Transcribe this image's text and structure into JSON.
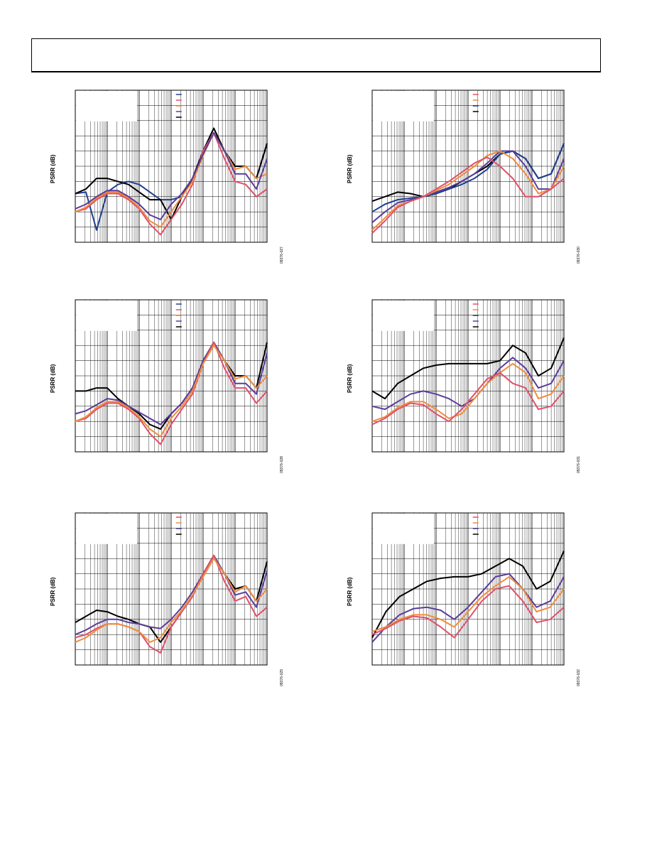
{
  "page": {
    "header_title": ""
  },
  "chart_data": [
    {
      "type": "line",
      "ylabel": "PSRR (dB)",
      "figure_id": "09376-027",
      "x_scale": "log",
      "grid": true,
      "legend": {
        "placement": "top-right",
        "colors": [
          "#1f3f8f",
          "#e0506a",
          "#f08c3c",
          "#5a3d9a",
          "#000000"
        ]
      },
      "series": [
        {
          "color": "#1f3f8f",
          "y": [
            0.32,
            0.33,
            0.08,
            0.33,
            0.38,
            0.4,
            0.38,
            0.33,
            0.28,
            0.28,
            0.3,
            0.42,
            0.6,
            0.75,
            0.6,
            0.5,
            0.5,
            0.42,
            0.65
          ]
        },
        {
          "color": "#000000",
          "y": [
            0.32,
            0.35,
            0.42,
            0.42,
            0.4,
            0.38,
            0.33,
            0.28,
            0.28,
            0.15,
            0.3,
            0.42,
            0.6,
            0.75,
            0.6,
            0.5,
            0.5,
            0.42,
            0.65
          ]
        },
        {
          "color": "#e0506a",
          "y": [
            0.2,
            0.22,
            0.28,
            0.32,
            0.32,
            0.28,
            0.22,
            0.12,
            0.05,
            0.15,
            0.25,
            0.38,
            0.6,
            0.72,
            0.55,
            0.4,
            0.38,
            0.3,
            0.35
          ]
        },
        {
          "color": "#f08c3c",
          "y": [
            0.2,
            0.23,
            0.29,
            0.33,
            0.33,
            0.29,
            0.23,
            0.14,
            0.1,
            0.2,
            0.3,
            0.4,
            0.57,
            0.72,
            0.6,
            0.48,
            0.5,
            0.42,
            0.45
          ]
        },
        {
          "color": "#5a3d9a",
          "y": [
            0.22,
            0.25,
            0.3,
            0.34,
            0.34,
            0.3,
            0.25,
            0.18,
            0.15,
            0.25,
            0.32,
            0.42,
            0.58,
            0.72,
            0.6,
            0.45,
            0.45,
            0.35,
            0.55
          ]
        }
      ]
    },
    {
      "type": "line",
      "ylabel": "PSRR (dB)",
      "figure_id": "09376-030",
      "x_scale": "log",
      "grid": true,
      "legend": {
        "placement": "top-right",
        "colors": [
          "#e0506a",
          "#f08c3c",
          "#1f3f8f",
          "#000000"
        ]
      },
      "series": [
        {
          "color": "#000000",
          "y": [
            0.27,
            0.3,
            0.33,
            0.32,
            0.3,
            0.32,
            0.35,
            0.4,
            0.45,
            0.5,
            0.58,
            0.6,
            0.55,
            0.42,
            0.45,
            0.65
          ]
        },
        {
          "color": "#1f3f8f",
          "y": [
            0.2,
            0.25,
            0.28,
            0.29,
            0.3,
            0.32,
            0.35,
            0.38,
            0.42,
            0.48,
            0.58,
            0.6,
            0.55,
            0.42,
            0.45,
            0.65
          ]
        },
        {
          "color": "#5a3d9a",
          "y": [
            0.13,
            0.2,
            0.26,
            0.28,
            0.3,
            0.33,
            0.36,
            0.4,
            0.45,
            0.52,
            0.6,
            0.6,
            0.5,
            0.35,
            0.35,
            0.55
          ]
        },
        {
          "color": "#f08c3c",
          "y": [
            0.08,
            0.16,
            0.24,
            0.27,
            0.3,
            0.34,
            0.38,
            0.44,
            0.5,
            0.57,
            0.6,
            0.55,
            0.45,
            0.32,
            0.35,
            0.5
          ]
        },
        {
          "color": "#e0506a",
          "y": [
            0.06,
            0.14,
            0.23,
            0.27,
            0.3,
            0.35,
            0.4,
            0.46,
            0.52,
            0.56,
            0.5,
            0.42,
            0.3,
            0.3,
            0.35,
            0.42
          ]
        }
      ]
    },
    {
      "type": "line",
      "ylabel": "PSRR (dB)",
      "figure_id": "09376-028",
      "x_scale": "log",
      "grid": true,
      "legend": {
        "placement": "top-right",
        "colors": [
          "#1f3f8f",
          "#e0506a",
          "#f08c3c",
          "#5a3d9a",
          "#000000"
        ]
      },
      "series": [
        {
          "color": "#000000",
          "y": [
            0.4,
            0.4,
            0.42,
            0.42,
            0.35,
            0.3,
            0.25,
            0.18,
            0.15,
            0.25,
            0.32,
            0.42,
            0.6,
            0.72,
            0.6,
            0.5,
            0.5,
            0.42,
            0.72
          ]
        },
        {
          "color": "#5a3d9a",
          "y": [
            0.25,
            0.27,
            0.31,
            0.35,
            0.34,
            0.3,
            0.26,
            0.22,
            0.18,
            0.25,
            0.32,
            0.42,
            0.6,
            0.72,
            0.6,
            0.45,
            0.45,
            0.38,
            0.65
          ]
        },
        {
          "color": "#e0506a",
          "y": [
            0.2,
            0.22,
            0.28,
            0.32,
            0.32,
            0.28,
            0.22,
            0.12,
            0.05,
            0.18,
            0.28,
            0.38,
            0.58,
            0.72,
            0.55,
            0.42,
            0.42,
            0.32,
            0.4
          ]
        },
        {
          "color": "#f08c3c",
          "y": [
            0.2,
            0.23,
            0.29,
            0.33,
            0.33,
            0.29,
            0.23,
            0.15,
            0.1,
            0.22,
            0.3,
            0.4,
            0.58,
            0.7,
            0.6,
            0.48,
            0.5,
            0.42,
            0.5
          ]
        }
      ]
    },
    {
      "type": "line",
      "ylabel": "PSRR (dB)",
      "figure_id": "09376-031",
      "x_scale": "log",
      "grid": true,
      "legend": {
        "placement": "top-right",
        "colors": [
          "#e0506a",
          "#f08c3c",
          "#1f3f8f",
          "#5a3d9a",
          "#000000"
        ]
      },
      "series": [
        {
          "color": "#000000",
          "y": [
            0.4,
            0.35,
            0.45,
            0.5,
            0.55,
            0.57,
            0.58,
            0.58,
            0.58,
            0.58,
            0.6,
            0.7,
            0.65,
            0.5,
            0.55,
            0.75
          ]
        },
        {
          "color": "#5a3d9a",
          "y": [
            0.3,
            0.28,
            0.33,
            0.38,
            0.4,
            0.38,
            0.35,
            0.3,
            0.35,
            0.45,
            0.55,
            0.62,
            0.55,
            0.42,
            0.45,
            0.6
          ]
        },
        {
          "color": "#f08c3c",
          "y": [
            0.2,
            0.23,
            0.29,
            0.33,
            0.33,
            0.28,
            0.22,
            0.25,
            0.35,
            0.45,
            0.52,
            0.58,
            0.52,
            0.35,
            0.38,
            0.5
          ]
        },
        {
          "color": "#e0506a",
          "y": [
            0.18,
            0.22,
            0.28,
            0.32,
            0.31,
            0.25,
            0.2,
            0.28,
            0.38,
            0.48,
            0.52,
            0.45,
            0.42,
            0.28,
            0.3,
            0.4
          ]
        }
      ]
    },
    {
      "type": "line",
      "ylabel": "PSRR (dB)",
      "figure_id": "09376-029",
      "x_scale": "log",
      "grid": true,
      "legend": {
        "placement": "top-right",
        "colors": [
          "#e0506a",
          "#f08c3c",
          "#5a3d9a",
          "#000000"
        ]
      },
      "series": [
        {
          "color": "#000000",
          "y": [
            0.28,
            0.32,
            0.36,
            0.35,
            0.32,
            0.3,
            0.27,
            0.25,
            0.15,
            0.25,
            0.35,
            0.45,
            0.6,
            0.72,
            0.6,
            0.5,
            0.52,
            0.42,
            0.68
          ]
        },
        {
          "color": "#5a3d9a",
          "y": [
            0.2,
            0.23,
            0.27,
            0.3,
            0.3,
            0.28,
            0.27,
            0.25,
            0.24,
            0.3,
            0.38,
            0.48,
            0.6,
            0.72,
            0.6,
            0.46,
            0.48,
            0.38,
            0.62
          ]
        },
        {
          "color": "#e0506a",
          "y": [
            0.18,
            0.2,
            0.24,
            0.27,
            0.27,
            0.25,
            0.22,
            0.12,
            0.08,
            0.25,
            0.35,
            0.45,
            0.6,
            0.72,
            0.55,
            0.42,
            0.45,
            0.32,
            0.38
          ]
        },
        {
          "color": "#f08c3c",
          "y": [
            0.15,
            0.18,
            0.23,
            0.27,
            0.27,
            0.25,
            0.22,
            0.15,
            0.18,
            0.28,
            0.36,
            0.46,
            0.58,
            0.7,
            0.6,
            0.48,
            0.52,
            0.42,
            0.5
          ]
        }
      ]
    },
    {
      "type": "line",
      "ylabel": "PSRR (dB)",
      "figure_id": "09376-032",
      "x_scale": "log",
      "grid": true,
      "legend": {
        "placement": "top-right",
        "colors": [
          "#e0506a",
          "#f08c3c",
          "#5a3d9a",
          "#000000"
        ]
      },
      "series": [
        {
          "color": "#000000",
          "y": [
            0.18,
            0.35,
            0.45,
            0.5,
            0.55,
            0.57,
            0.58,
            0.58,
            0.6,
            0.65,
            0.7,
            0.65,
            0.5,
            0.55,
            0.75
          ]
        },
        {
          "color": "#5a3d9a",
          "y": [
            0.15,
            0.25,
            0.33,
            0.37,
            0.38,
            0.36,
            0.3,
            0.38,
            0.48,
            0.58,
            0.6,
            0.5,
            0.38,
            0.42,
            0.58
          ]
        },
        {
          "color": "#f08c3c",
          "y": [
            0.22,
            0.25,
            0.3,
            0.33,
            0.33,
            0.3,
            0.25,
            0.35,
            0.45,
            0.52,
            0.58,
            0.5,
            0.35,
            0.38,
            0.5
          ]
        },
        {
          "color": "#e0506a",
          "y": [
            0.2,
            0.24,
            0.29,
            0.32,
            0.31,
            0.25,
            0.18,
            0.3,
            0.42,
            0.5,
            0.52,
            0.42,
            0.28,
            0.3,
            0.38
          ]
        }
      ]
    }
  ]
}
